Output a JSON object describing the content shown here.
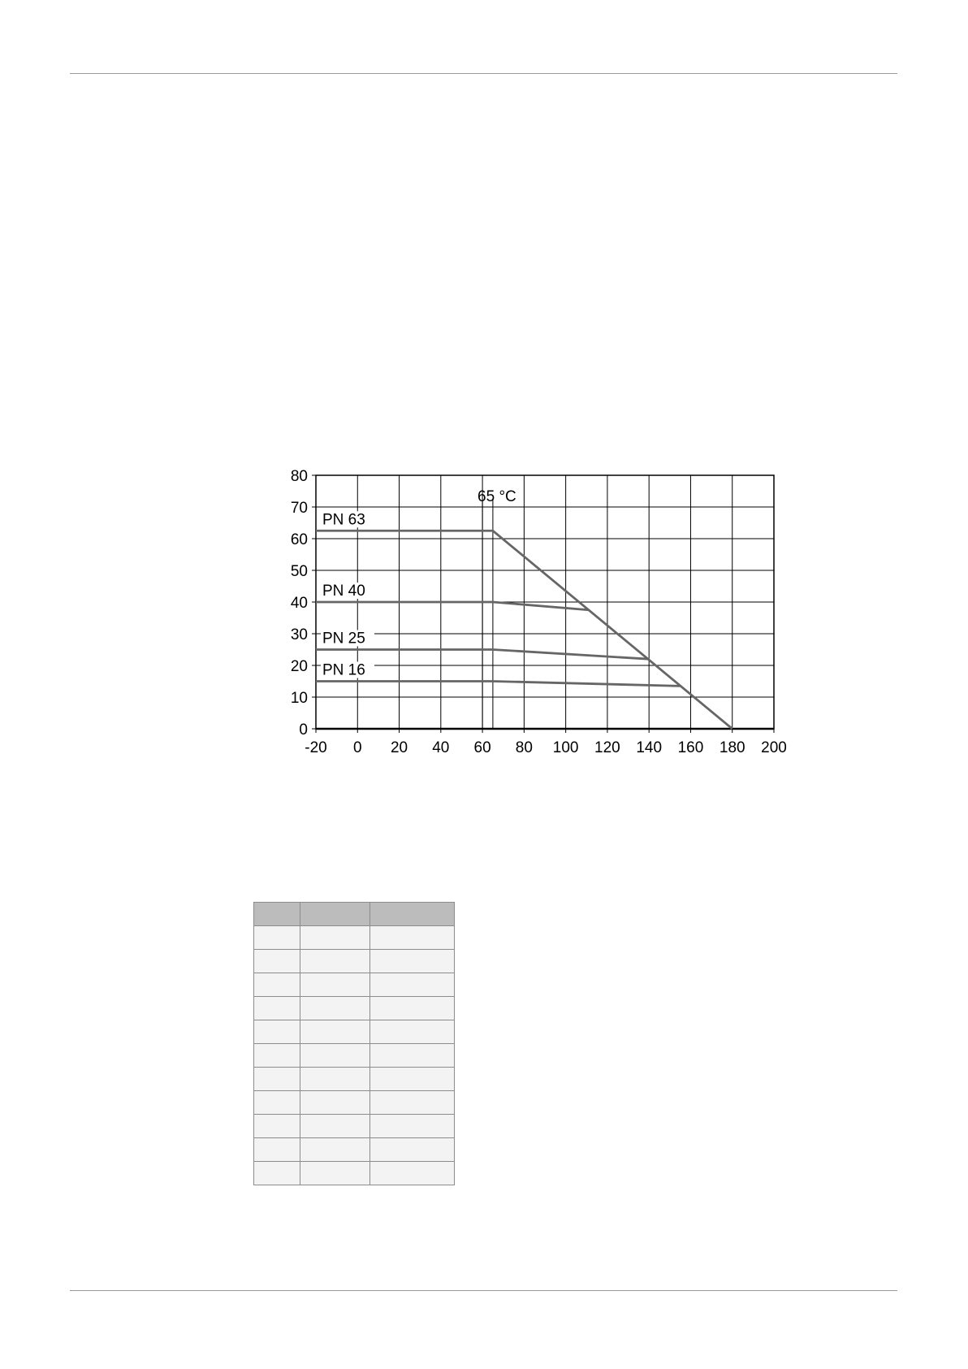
{
  "chart_data": {
    "type": "line",
    "title": "",
    "xlabel": "",
    "ylabel": "",
    "xlim": [
      -20,
      200
    ],
    "ylim": [
      0,
      80
    ],
    "xticks": [
      -20,
      0,
      20,
      40,
      60,
      80,
      100,
      120,
      140,
      160,
      180,
      200
    ],
    "yticks": [
      0,
      10,
      20,
      30,
      40,
      50,
      60,
      70,
      80
    ],
    "grid": true,
    "annotations": [
      {
        "text": "65 °C",
        "x": 65
      }
    ],
    "reference_lines_x": [
      60,
      65
    ],
    "series": [
      {
        "name": "PN 63",
        "x": [
          -20,
          65,
          180
        ],
        "y": [
          62.5,
          62.5,
          0
        ]
      },
      {
        "name": "PN 40",
        "x": [
          -20,
          65,
          111
        ],
        "y": [
          40,
          40,
          37.5
        ]
      },
      {
        "name": "PN 25",
        "x": [
          -20,
          65,
          140
        ],
        "y": [
          25,
          25,
          22
        ]
      },
      {
        "name": "PN 16",
        "x": [
          -20,
          65,
          155
        ],
        "y": [
          15,
          15,
          13.5
        ]
      }
    ],
    "line_color": "#666666"
  },
  "table": {
    "columns": 3,
    "header_rows": 1,
    "body_rows": 11,
    "header_color": "#bcbcbc",
    "cell_color": "#f3f3f3"
  }
}
